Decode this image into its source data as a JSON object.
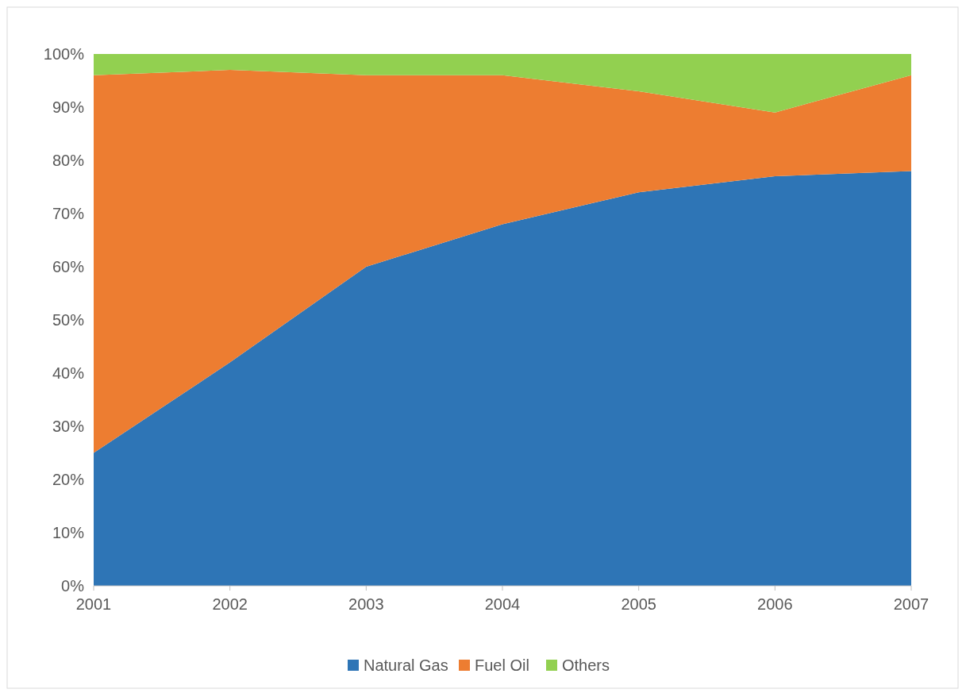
{
  "chart_data": {
    "type": "area",
    "stacked": true,
    "categories": [
      "2001",
      "2002",
      "2003",
      "2004",
      "2005",
      "2006",
      "2007"
    ],
    "series": [
      {
        "name": "Natural Gas",
        "color": "#2e75b6",
        "values": [
          25,
          42,
          60,
          68,
          74,
          77,
          78
        ]
      },
      {
        "name": "Fuel Oil",
        "color": "#ed7d31",
        "values": [
          71,
          55,
          36,
          28,
          19,
          12,
          18
        ]
      },
      {
        "name": "Others",
        "color": "#92d050",
        "values": [
          4,
          3,
          4,
          4,
          7,
          11,
          4
        ]
      }
    ],
    "ylim": [
      0,
      100
    ],
    "yticks": [
      {
        "value": 0,
        "label": "0%"
      },
      {
        "value": 10,
        "label": "10%"
      },
      {
        "value": 20,
        "label": "20%"
      },
      {
        "value": 30,
        "label": "30%"
      },
      {
        "value": 40,
        "label": "40%"
      },
      {
        "value": 50,
        "label": "50%"
      },
      {
        "value": 60,
        "label": "60%"
      },
      {
        "value": 70,
        "label": "70%"
      },
      {
        "value": 80,
        "label": "80%"
      },
      {
        "value": 90,
        "label": "90%"
      },
      {
        "value": 100,
        "label": "100%"
      }
    ],
    "legend": "bottom"
  }
}
